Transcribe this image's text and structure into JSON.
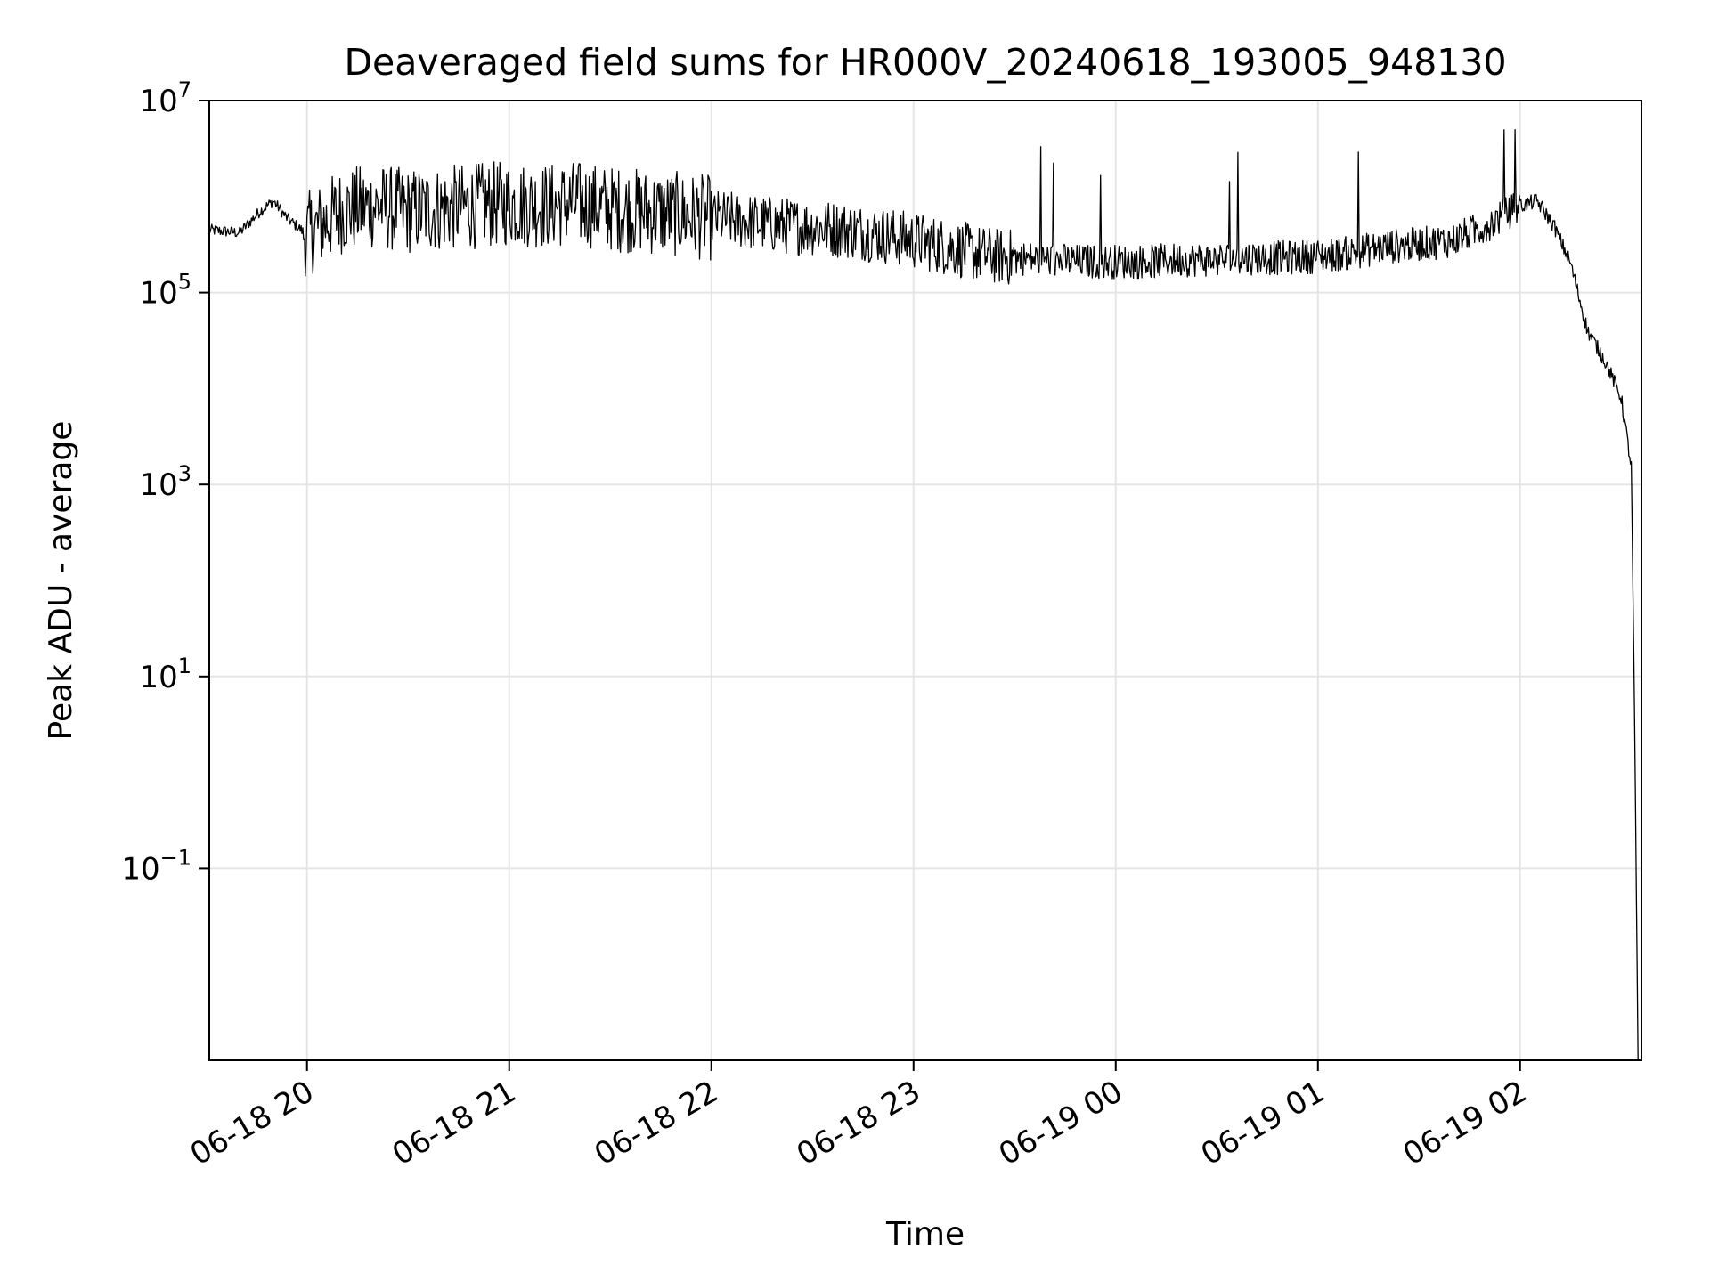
{
  "chart_data": {
    "type": "line",
    "title": "Deaveraged field sums for HR000V_20240618_193005_948130",
    "xlabel": "Time",
    "ylabel": "Peak ADU - average",
    "yscale": "log",
    "ylim": [
      0.001,
      10000000
    ],
    "xlim": [
      "2024-06-18 19:31",
      "2024-06-19 02:36"
    ],
    "grid": true,
    "x_ticks": [
      "06-18 20",
      "06-18 21",
      "06-18 22",
      "06-18 23",
      "06-19 00",
      "06-19 01",
      "06-19 02"
    ],
    "y_ticks": [
      {
        "base": "10",
        "exp": "7"
      },
      {
        "base": "10",
        "exp": "5"
      },
      {
        "base": "10",
        "exp": "3"
      },
      {
        "base": "10",
        "exp": "1"
      },
      {
        "base": "10",
        "exp": "−1"
      }
    ],
    "line_color": "#000000",
    "grid_color": "#e5e5e5",
    "series": [
      {
        "x": [
          "06-18 19:31",
          "06-18 19:40",
          "06-18 19:46",
          "06-18 19:50",
          "06-18 19:54",
          "06-18 20:00",
          "06-18 20:10",
          "06-18 20:20",
          "06-18 20:30",
          "06-18 20:40",
          "06-18 20:50",
          "06-18 21:00",
          "06-18 21:10",
          "06-18 21:20",
          "06-18 21:30",
          "06-18 21:40",
          "06-18 21:50",
          "06-18 22:00",
          "06-18 22:10",
          "06-18 22:20",
          "06-18 22:30",
          "06-18 22:40",
          "06-18 22:50",
          "06-18 23:00",
          "06-18 23:10",
          "06-18 23:20",
          "06-18 23:30",
          "06-18 23:40",
          "06-18 23:50",
          "06-19 00:00",
          "06-19 00:10",
          "06-19 00:20",
          "06-19 00:30",
          "06-19 00:40",
          "06-19 00:50",
          "06-19 01:00",
          "06-19 01:10",
          "06-19 01:20",
          "06-19 01:30",
          "06-19 01:40",
          "06-19 01:50",
          "06-19 02:00",
          "06-19 02:05",
          "06-19 02:10",
          "06-19 02:15",
          "06-19 02:20",
          "06-19 02:25",
          "06-19 02:30",
          "06-19 02:33",
          "06-19 02:34",
          "06-19 02:35"
        ],
        "y": [
          450000,
          420000,
          700000,
          900000,
          600000,
          400000,
          700000,
          800000,
          700000,
          750000,
          800000,
          850000,
          800000,
          850000,
          750000,
          700000,
          650000,
          600000,
          550000,
          500000,
          480000,
          450000,
          400000,
          350000,
          300000,
          250000,
          230000,
          220000,
          210000,
          210000,
          210000,
          220000,
          220000,
          230000,
          230000,
          240000,
          260000,
          300000,
          320000,
          350000,
          500000,
          800000,
          900000,
          500000,
          200000,
          40000,
          20000,
          8000,
          1500,
          3,
          0.001
        ]
      }
    ]
  }
}
